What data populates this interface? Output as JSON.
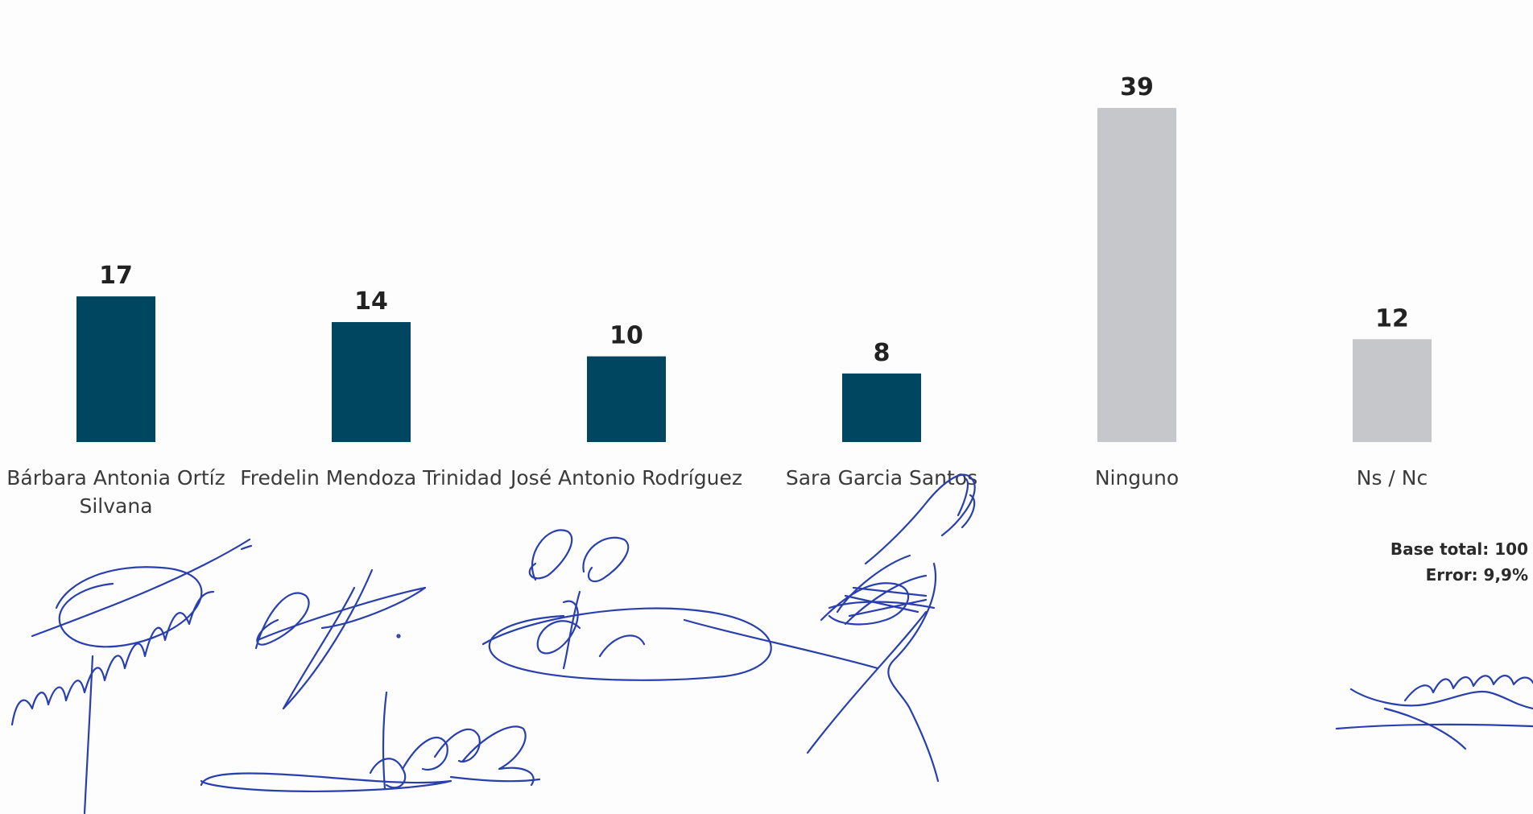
{
  "chart_data": {
    "type": "bar",
    "categories": [
      "Bárbara Antonia Ortíz Silvana",
      "Fredelin Mendoza Trinidad",
      "José Antonio Rodríguez",
      "Sara Garcia Santos",
      "Ninguno",
      "Ns / Nc"
    ],
    "category_lines": [
      [
        "Bárbara Antonia Ortíz",
        "Silvana"
      ],
      [
        "Fredelin Mendoza Trinidad"
      ],
      [
        "José Antonio Rodríguez"
      ],
      [
        "Sara Garcia Santos"
      ],
      [
        "Ninguno"
      ],
      [
        "Ns / Nc"
      ]
    ],
    "values": [
      17,
      14,
      10,
      8,
      39,
      12
    ],
    "bar_colors": [
      "#004661",
      "#004661",
      "#004661",
      "#004661",
      "#c6c7ca",
      "#c6c7ca"
    ],
    "title": "",
    "xlabel": "",
    "ylabel": "",
    "ylim": [
      0,
      39
    ],
    "grid": false,
    "legend": "none"
  },
  "footnote": {
    "base": "Base total: 100",
    "error": "Error: 9,9%"
  },
  "signatures": {
    "ink_color": "#2a3fae",
    "count": 6
  }
}
